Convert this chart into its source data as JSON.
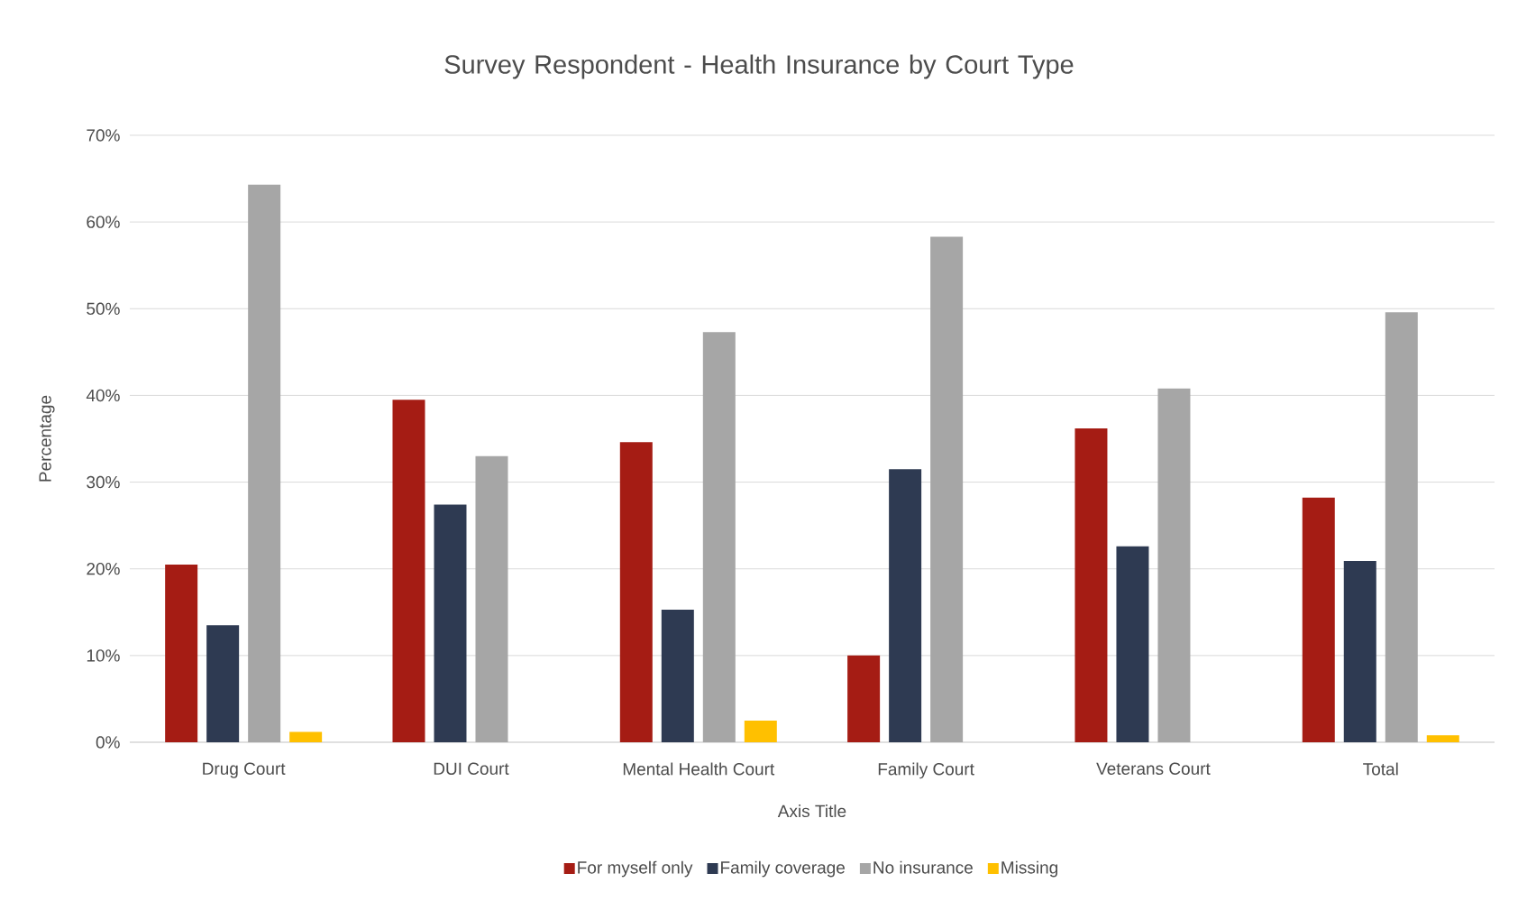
{
  "chart_data": {
    "type": "bar",
    "title": "Survey Respondent - Health Insurance by Court Type",
    "xlabel": "Axis Title",
    "ylabel": "Percentage",
    "categories": [
      "Drug Court",
      "DUI Court",
      "Mental Health Court",
      "Family Court",
      "Veterans Court",
      "Total"
    ],
    "series": [
      {
        "name": "For myself only",
        "color": "#a51c14",
        "values": [
          20.5,
          39.5,
          34.6,
          10.0,
          36.2,
          28.2
        ]
      },
      {
        "name": "Family coverage",
        "color": "#2e3a52",
        "values": [
          13.5,
          27.4,
          15.3,
          31.5,
          22.6,
          20.9
        ]
      },
      {
        "name": "No insurance",
        "color": "#a6a6a6",
        "values": [
          64.3,
          33.0,
          47.3,
          58.3,
          40.8,
          49.6
        ]
      },
      {
        "name": "Missing",
        "color": "#ffc000",
        "values": [
          1.2,
          0,
          2.5,
          0,
          0,
          0.8
        ]
      }
    ],
    "ylim": [
      0,
      70
    ],
    "yticks": [
      {
        "value": 0,
        "label": "0%"
      },
      {
        "value": 10,
        "label": "10%"
      },
      {
        "value": 20,
        "label": "20%"
      },
      {
        "value": 30,
        "label": "30%"
      },
      {
        "value": 40,
        "label": "40%"
      },
      {
        "value": 50,
        "label": "50%"
      },
      {
        "value": 60,
        "label": "60%"
      },
      {
        "value": 70,
        "label": "70%"
      }
    ],
    "grid": "y",
    "legend": "bottom"
  }
}
